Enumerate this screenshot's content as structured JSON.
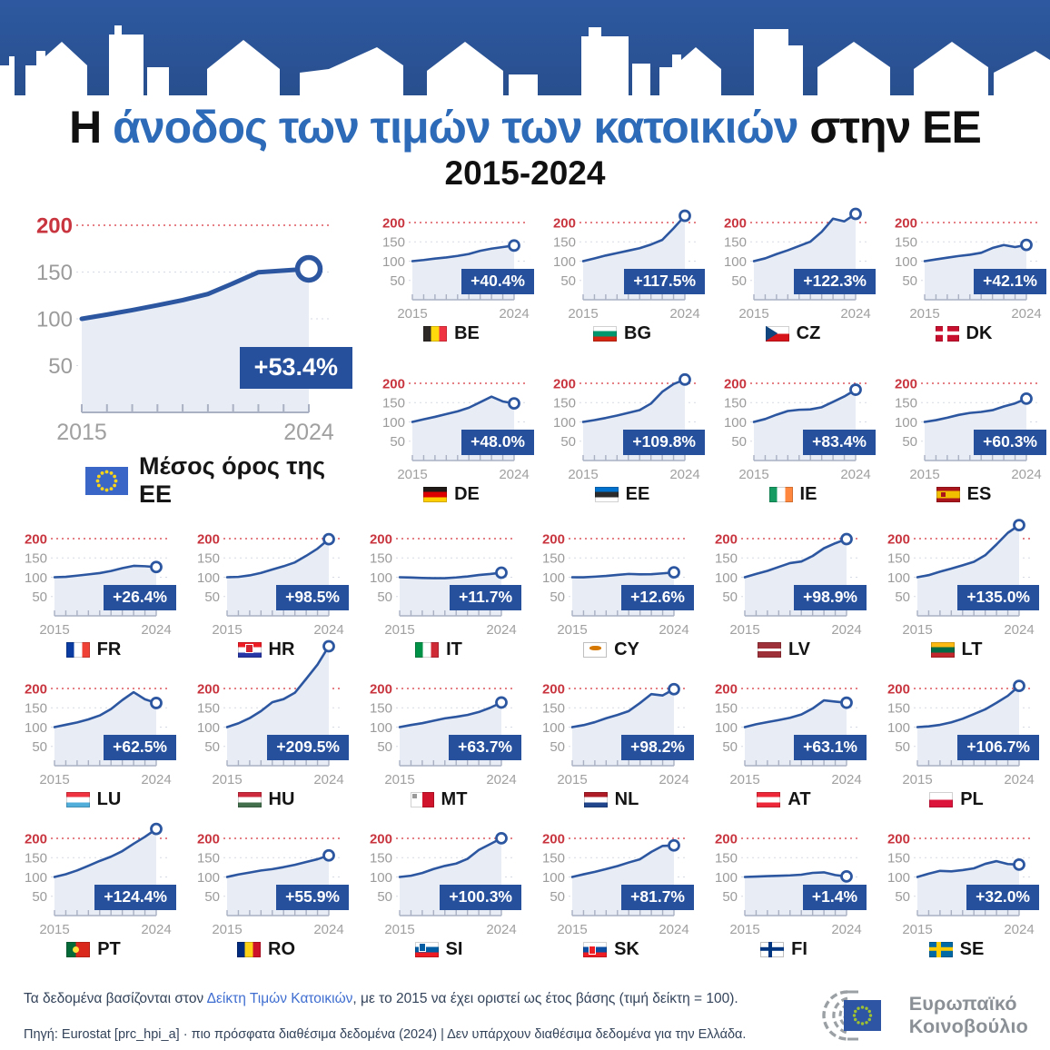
{
  "banner": {
    "color": "#2b5596"
  },
  "title": {
    "prefix": "Η ",
    "highlight": "άνοδος των τιμών των κατοικιών",
    "suffix": " στην ΕΕ",
    "subtitle": "2015-2024"
  },
  "colors": {
    "line_blue": "#2c57a0",
    "area_fill": "#e8ecf5",
    "badge_blue": "#26509c",
    "reference_red": "#c8353f",
    "axis_gray": "#a9b1c3",
    "label_gray": "#9b9b9b",
    "title_blue": "#2d6ab8",
    "link_blue": "#3f6ed0",
    "banner_blue": "#2b5596"
  },
  "chart_data": {
    "type": "area",
    "x": [
      2015,
      2016,
      2017,
      2018,
      2019,
      2020,
      2021,
      2022,
      2023,
      2024
    ],
    "x_axis_labels": [
      "2015",
      "2024"
    ],
    "y_ticks": [
      50,
      100,
      150,
      200
    ],
    "reference_line": 200,
    "baseline_note": "index 2015 = 100",
    "eu": {
      "code": "EU",
      "label": "Μέσος όρος της ΕΕ",
      "badge": "+53.4%",
      "values": [
        100,
        104.5,
        109.3,
        114.5,
        120.0,
        126.5,
        137.9,
        149.8,
        151.6,
        153.4
      ]
    },
    "countries": [
      {
        "code": "BE",
        "badge": "+40.4%",
        "values": [
          100,
          102.9,
          106.6,
          109.5,
          113.5,
          118.6,
          126.7,
          132.3,
          136.5,
          140.4
        ],
        "flag": {
          "type": "tri-v",
          "colors": [
            "#2d2926",
            "#ffd90c",
            "#ef3340"
          ]
        }
      },
      {
        "code": "BG",
        "badge": "+117.5%",
        "values": [
          100,
          107.0,
          114.6,
          120.9,
          127.2,
          133.5,
          143.0,
          155.0,
          185.0,
          217.5
        ],
        "flag": {
          "type": "tri-h",
          "colors": [
            "#ffffff",
            "#00966e",
            "#d62612"
          ]
        }
      },
      {
        "code": "CZ",
        "badge": "+122.3%",
        "values": [
          100,
          107.2,
          118.2,
          128.1,
          139.2,
          150.5,
          176.0,
          210.0,
          203.0,
          222.3
        ],
        "flag": {
          "type": "cz",
          "colors": [
            "#ffffff",
            "#d7141a",
            "#11457e"
          ]
        }
      },
      {
        "code": "DK",
        "badge": "+42.1%",
        "values": [
          100,
          104.5,
          109.0,
          113.2,
          116.6,
          121.6,
          134.0,
          141.8,
          136.5,
          142.1
        ],
        "flag": {
          "type": "cross",
          "colors": [
            "#c8102e",
            "#ffffff"
          ]
        }
      },
      {
        "code": "DE",
        "badge": "+48.0%",
        "values": [
          100,
          106.8,
          113.1,
          120.3,
          127.3,
          136.8,
          151.0,
          165.5,
          153.0,
          148.0
        ],
        "flag": {
          "type": "tri-h",
          "colors": [
            "#1f1a17",
            "#dd0000",
            "#ffce00"
          ]
        }
      },
      {
        "code": "EE",
        "badge": "+109.8%",
        "values": [
          100,
          104.7,
          110.2,
          116.5,
          123.5,
          130.5,
          147.5,
          178.0,
          198.0,
          209.8
        ],
        "flag": {
          "type": "tri-h",
          "colors": [
            "#0072ce",
            "#2b2b2b",
            "#ffffff"
          ]
        }
      },
      {
        "code": "IE",
        "badge": "+83.4%",
        "values": [
          100,
          107.5,
          118.6,
          128.2,
          131.5,
          132.5,
          138.0,
          152.0,
          166.0,
          183.4
        ],
        "flag": {
          "type": "tri-v",
          "colors": [
            "#169b62",
            "#ffffff",
            "#ff883e"
          ]
        }
      },
      {
        "code": "ES",
        "badge": "+60.3%",
        "values": [
          100,
          104.6,
          110.9,
          118.1,
          123.2,
          125.9,
          130.4,
          139.9,
          148.0,
          160.3
        ],
        "flag": {
          "type": "es",
          "colors": [
            "#aa151b",
            "#f1bf00"
          ]
        }
      },
      {
        "code": "FR",
        "badge": "+26.4%",
        "values": [
          100,
          101.0,
          104.1,
          107.4,
          110.8,
          116.2,
          123.5,
          129.5,
          128.5,
          126.4
        ],
        "flag": {
          "type": "tri-v",
          "colors": [
            "#0a3ca2",
            "#ffffff",
            "#ef4135"
          ]
        }
      },
      {
        "code": "HR",
        "badge": "+98.5%",
        "values": [
          100,
          100.9,
          104.8,
          111.1,
          120.1,
          128.4,
          138.4,
          155.5,
          174.0,
          198.5
        ],
        "flag": {
          "type": "tri-h",
          "colors": [
            "#ee1c25",
            "#ffffff",
            "#2737a5"
          ],
          "emblem": {
            "color": "#d32432",
            "x": 38,
            "y": 18,
            "w": 7,
            "h": 8
          }
        }
      },
      {
        "code": "IT",
        "badge": "+11.7%",
        "values": [
          100,
          99.2,
          98.1,
          97.5,
          97.5,
          99.4,
          102.0,
          105.8,
          108.4,
          111.7
        ],
        "flag": {
          "type": "tri-v",
          "colors": [
            "#009246",
            "#ffffff",
            "#ce2b37"
          ]
        }
      },
      {
        "code": "CY",
        "badge": "+12.6%",
        "values": [
          100,
          99.8,
          101.5,
          103.3,
          106.0,
          108.5,
          107.5,
          107.9,
          110.0,
          112.6
        ],
        "flag": {
          "type": "cy",
          "colors": [
            "#ffffff",
            "#d57800"
          ]
        }
      },
      {
        "code": "LV",
        "badge": "+98.9%",
        "values": [
          100,
          108.6,
          116.5,
          126.6,
          136.6,
          140.8,
          155.0,
          175.0,
          188.0,
          198.9
        ],
        "flag": {
          "type": "lv",
          "colors": [
            "#9e3039",
            "#ffffff"
          ]
        }
      },
      {
        "code": "LT",
        "badge": "+135.0%",
        "values": [
          100,
          105.4,
          114.4,
          122.3,
          130.9,
          140.1,
          157.0,
          185.0,
          215.0,
          235.0
        ],
        "flag": {
          "type": "tri-h",
          "colors": [
            "#fdb913",
            "#006a44",
            "#c1272d"
          ]
        }
      },
      {
        "code": "LU",
        "badge": "+62.5%",
        "values": [
          100,
          106.0,
          112.1,
          120.0,
          130.1,
          146.8,
          170.0,
          190.5,
          172.0,
          162.5
        ],
        "flag": {
          "type": "tri-h",
          "colors": [
            "#ef3340",
            "#ffffff",
            "#51adda"
          ]
        }
      },
      {
        "code": "HU",
        "badge": "+209.5%",
        "values": [
          100,
          109.7,
          123.3,
          141.4,
          164.4,
          172.5,
          189.0,
          225.0,
          262.0,
          309.5
        ],
        "flag": {
          "type": "tri-h",
          "colors": [
            "#cd2a3e",
            "#ffffff",
            "#436f4d"
          ]
        }
      },
      {
        "code": "MT",
        "badge": "+63.7%",
        "values": [
          100,
          105.4,
          110.1,
          116.4,
          122.6,
          126.6,
          131.5,
          139.0,
          150.0,
          163.7
        ],
        "flag": {
          "type": "mt",
          "colors": [
            "#ffffff",
            "#cf142b",
            "#9a9a9a"
          ]
        }
      },
      {
        "code": "NL",
        "badge": "+98.2%",
        "values": [
          100,
          105.1,
          112.8,
          122.9,
          131.4,
          141.5,
          162.5,
          185.5,
          182.0,
          198.2
        ],
        "flag": {
          "type": "tri-h",
          "colors": [
            "#ae1c28",
            "#ffffff",
            "#21468b"
          ]
        }
      },
      {
        "code": "AT",
        "badge": "+63.1%",
        "values": [
          100,
          107.3,
          112.9,
          118.3,
          124.1,
          132.7,
          148.2,
          169.3,
          166.0,
          163.1
        ],
        "flag": {
          "type": "tri-h",
          "colors": [
            "#ed2939",
            "#ffffff",
            "#ed2939"
          ]
        }
      },
      {
        "code": "PL",
        "badge": "+106.7%",
        "values": [
          100,
          101.9,
          105.8,
          112.4,
          121.6,
          133.7,
          146.0,
          163.0,
          181.0,
          206.7
        ],
        "flag": {
          "type": "half-h",
          "colors": [
            "#ffffff",
            "#dc143c"
          ]
        }
      },
      {
        "code": "PT",
        "badge": "+124.4%",
        "values": [
          100,
          107.1,
          116.9,
          128.9,
          141.5,
          152.6,
          167.0,
          186.0,
          204.0,
          224.4
        ],
        "flag": {
          "type": "pt",
          "colors": [
            "#046a38",
            "#da291c",
            "#ffe03a"
          ]
        }
      },
      {
        "code": "RO",
        "badge": "+55.9%",
        "values": [
          100,
          106.5,
          111.5,
          116.8,
          120.3,
          125.5,
          131.4,
          138.9,
          146.0,
          155.9
        ],
        "flag": {
          "type": "tri-v",
          "colors": [
            "#002b7f",
            "#fcd116",
            "#ce1126"
          ]
        }
      },
      {
        "code": "SI",
        "badge": "+100.3%",
        "values": [
          100,
          103.2,
          110.3,
          120.5,
          128.7,
          134.7,
          146.9,
          170.0,
          185.0,
          200.3
        ],
        "flag": {
          "type": "tri-h",
          "colors": [
            "#ffffff",
            "#005da4",
            "#ed1c24"
          ],
          "emblem": {
            "color": "#005da4",
            "x": 22,
            "y": 12,
            "w": 6,
            "h": 8
          }
        }
      },
      {
        "code": "SK",
        "badge": "+81.7%",
        "values": [
          100,
          106.9,
          113.2,
          120.6,
          128.3,
          137.5,
          146.0,
          165.0,
          180.5,
          181.7
        ],
        "flag": {
          "type": "tri-h",
          "colors": [
            "#ffffff",
            "#0b4ea2",
            "#ee1c25"
          ],
          "emblem": {
            "color": "#ee1c25",
            "x": 28,
            "y": 35,
            "w": 6,
            "h": 8
          }
        }
      },
      {
        "code": "FI",
        "badge": "+1.4%",
        "values": [
          100,
          101.1,
          102.2,
          103.1,
          104.1,
          105.9,
          110.6,
          112.0,
          105.0,
          101.4
        ],
        "flag": {
          "type": "cross",
          "colors": [
            "#ffffff",
            "#003580"
          ]
        }
      },
      {
        "code": "SE",
        "badge": "+32.0%",
        "values": [
          100,
          108.6,
          115.8,
          114.6,
          117.8,
          122.4,
          134.0,
          141.0,
          133.5,
          132.0
        ],
        "flag": {
          "type": "cross",
          "colors": [
            "#006aa7",
            "#fecc02"
          ]
        }
      }
    ]
  },
  "footer": {
    "line1_before": "Τα δεδομένα βασίζονται στον ",
    "line1_link": "Δείκτη Τιμών Κατοικιών",
    "line1_after": ", με το 2015 να έχει οριστεί ως έτος βάσης (τιμή δείκτη = 100).",
    "line2": "Πηγή: Eurostat [prc_hpi_a] · πιο πρόσφατα διαθέσιμα δεδομένα (2024) | Δεν υπάρχουν διαθέσιμα δεδομένα για την Ελλάδα."
  },
  "logo": {
    "line1": "Ευρωπαϊκό",
    "line2": "Κοινοβούλιο"
  }
}
